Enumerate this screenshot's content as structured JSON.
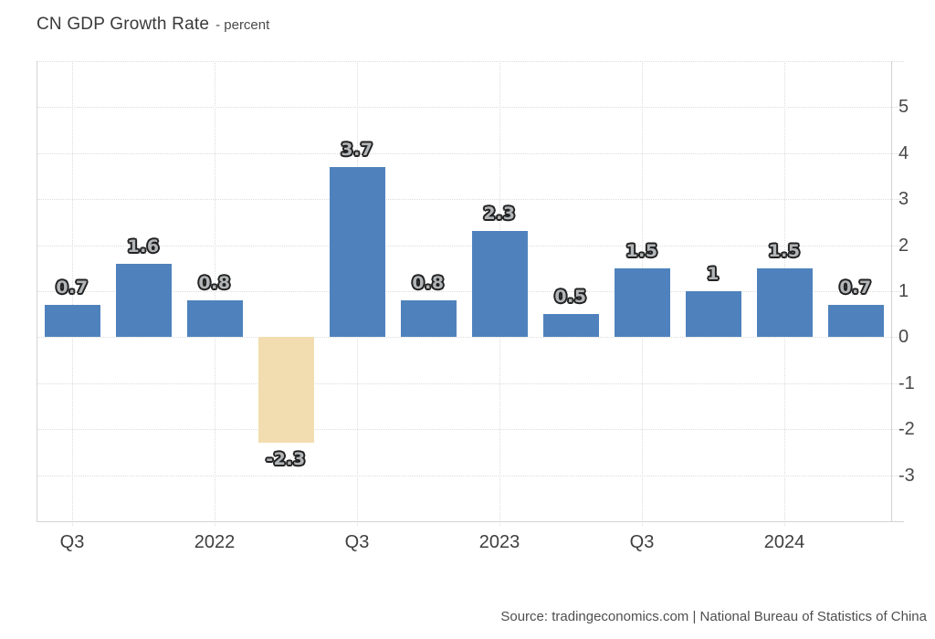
{
  "header": {
    "title": "CN GDP Growth Rate",
    "subtitle": "- percent"
  },
  "footer": {
    "source": "Source: tradingeconomics.com | National Bureau of Statistics of China"
  },
  "chart_data": {
    "type": "bar",
    "title": "CN GDP Growth Rate",
    "unit": "percent",
    "values": [
      0.7,
      1.6,
      0.8,
      -2.3,
      3.7,
      0.8,
      2.3,
      0.5,
      1.5,
      1,
      1.5,
      0.7
    ],
    "bar_labels": [
      "0.7",
      "1.6",
      "0.8",
      "-2.3",
      "3.7",
      "0.8",
      "2.3",
      "0.5",
      "1.5",
      "1",
      "1.5",
      "0.7"
    ],
    "x_tick_labels": [
      "Q3",
      "2022",
      "Q3",
      "2023",
      "Q3",
      "2024"
    ],
    "x_tick_slots": [
      0,
      2,
      4,
      6,
      8,
      10
    ],
    "y_ticks": [
      5,
      4,
      3,
      2,
      1,
      0,
      -1,
      -2,
      -3
    ],
    "ylim": [
      -4,
      6
    ],
    "grid": "dotted",
    "legend": "none",
    "y_axis_position": "right",
    "colors": {
      "positive_bar": "#4f82bd",
      "negative_bar": "#f2ddb0",
      "grid": "#dcdcdc",
      "axis": "#d4d4d4",
      "value_label_fill": "#b3b6b8",
      "value_label_outline": "#222222"
    }
  }
}
